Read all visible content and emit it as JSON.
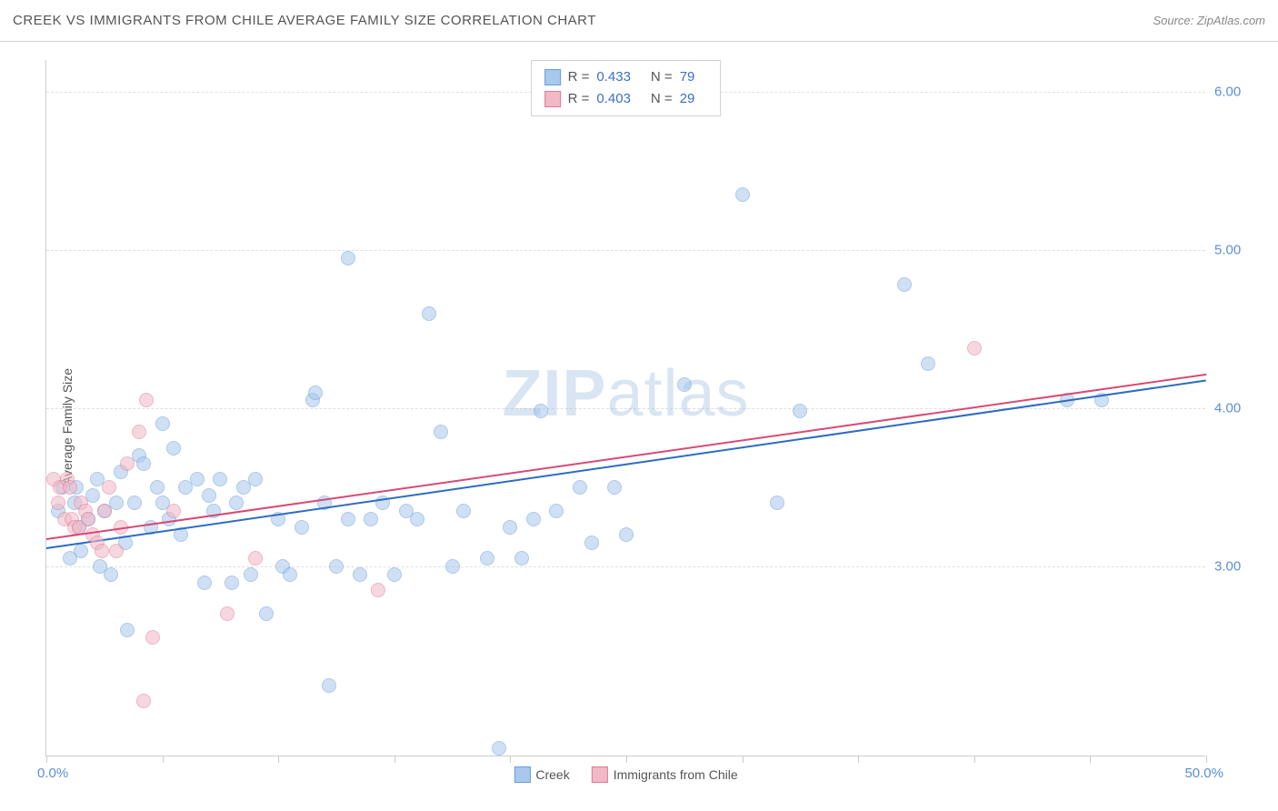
{
  "header": {
    "title": "CREEK VS IMMIGRANTS FROM CHILE AVERAGE FAMILY SIZE CORRELATION CHART",
    "source": "Source: ZipAtlas.com"
  },
  "watermark": {
    "zip": "ZIP",
    "atlas": "atlas"
  },
  "y_axis": {
    "label": "Average Family Size"
  },
  "chart": {
    "type": "scatter",
    "xlim": [
      0,
      50
    ],
    "ylim": [
      1.8,
      6.2
    ],
    "x_min_label": "0.0%",
    "x_max_label": "50.0%",
    "x_ticks": [
      0,
      5,
      10,
      15,
      20,
      25,
      30,
      35,
      40,
      45,
      50
    ],
    "y_ticks": [
      3.0,
      4.0,
      5.0,
      6.0
    ],
    "y_tick_labels": [
      "3.00",
      "4.00",
      "5.00",
      "6.00"
    ],
    "grid_color": "#e0e0e0",
    "axis_color": "#cccccc",
    "tick_label_color": "#5b8fd6",
    "background_color": "#ffffff",
    "point_radius": 8,
    "point_opacity": 0.55,
    "series": [
      {
        "name": "Creek",
        "fill_color": "#a8c8ec",
        "stroke_color": "#6a9ddb",
        "line_color": "#2d6cc0",
        "R": "0.433",
        "N": "79",
        "trend": {
          "x1": 0,
          "y1": 3.12,
          "x2": 50,
          "y2": 4.18
        },
        "points": [
          {
            "x": 0.5,
            "y": 3.35
          },
          {
            "x": 0.7,
            "y": 3.5
          },
          {
            "x": 1.0,
            "y": 3.05
          },
          {
            "x": 1.2,
            "y": 3.4
          },
          {
            "x": 1.3,
            "y": 3.5
          },
          {
            "x": 1.4,
            "y": 3.25
          },
          {
            "x": 1.5,
            "y": 3.1
          },
          {
            "x": 1.8,
            "y": 3.3
          },
          {
            "x": 2.0,
            "y": 3.45
          },
          {
            "x": 2.2,
            "y": 3.55
          },
          {
            "x": 2.3,
            "y": 3.0
          },
          {
            "x": 2.5,
            "y": 3.35
          },
          {
            "x": 2.8,
            "y": 2.95
          },
          {
            "x": 3.0,
            "y": 3.4
          },
          {
            "x": 3.2,
            "y": 3.6
          },
          {
            "x": 3.4,
            "y": 3.15
          },
          {
            "x": 3.5,
            "y": 2.6
          },
          {
            "x": 3.8,
            "y": 3.4
          },
          {
            "x": 4.0,
            "y": 3.7
          },
          {
            "x": 4.2,
            "y": 3.65
          },
          {
            "x": 4.5,
            "y": 3.25
          },
          {
            "x": 4.8,
            "y": 3.5
          },
          {
            "x": 5.0,
            "y": 3.4
          },
          {
            "x": 5.3,
            "y": 3.3
          },
          {
            "x": 5.5,
            "y": 3.75
          },
          {
            "x": 5.8,
            "y": 3.2
          },
          {
            "x": 6.0,
            "y": 3.5
          },
          {
            "x": 6.5,
            "y": 3.55
          },
          {
            "x": 6.8,
            "y": 2.9
          },
          {
            "x": 7.0,
            "y": 3.45
          },
          {
            "x": 7.2,
            "y": 3.35
          },
          {
            "x": 7.5,
            "y": 3.55
          },
          {
            "x": 8.0,
            "y": 2.9
          },
          {
            "x": 8.2,
            "y": 3.4
          },
          {
            "x": 8.5,
            "y": 3.5
          },
          {
            "x": 8.8,
            "y": 2.95
          },
          {
            "x": 9.0,
            "y": 3.55
          },
          {
            "x": 9.5,
            "y": 2.7
          },
          {
            "x": 10.0,
            "y": 3.3
          },
          {
            "x": 10.2,
            "y": 3.0
          },
          {
            "x": 10.5,
            "y": 2.95
          },
          {
            "x": 11.0,
            "y": 3.25
          },
          {
            "x": 11.5,
            "y": 4.05
          },
          {
            "x": 11.6,
            "y": 4.1
          },
          {
            "x": 12.0,
            "y": 3.4
          },
          {
            "x": 12.2,
            "y": 2.25
          },
          {
            "x": 12.5,
            "y": 3.0
          },
          {
            "x": 13.0,
            "y": 3.3
          },
          {
            "x": 13.0,
            "y": 4.95
          },
          {
            "x": 13.5,
            "y": 2.95
          },
          {
            "x": 14.0,
            "y": 3.3
          },
          {
            "x": 14.5,
            "y": 3.4
          },
          {
            "x": 15.0,
            "y": 2.95
          },
          {
            "x": 15.5,
            "y": 3.35
          },
          {
            "x": 16.5,
            "y": 4.6
          },
          {
            "x": 16.0,
            "y": 3.3
          },
          {
            "x": 17.0,
            "y": 3.85
          },
          {
            "x": 17.5,
            "y": 3.0
          },
          {
            "x": 18.0,
            "y": 3.35
          },
          {
            "x": 19.0,
            "y": 3.05
          },
          {
            "x": 19.5,
            "y": 1.85
          },
          {
            "x": 20.0,
            "y": 3.25
          },
          {
            "x": 20.5,
            "y": 3.05
          },
          {
            "x": 21.0,
            "y": 3.3
          },
          {
            "x": 21.3,
            "y": 3.98
          },
          {
            "x": 22.0,
            "y": 3.35
          },
          {
            "x": 23.0,
            "y": 3.5
          },
          {
            "x": 23.5,
            "y": 3.15
          },
          {
            "x": 24.5,
            "y": 3.5
          },
          {
            "x": 25.0,
            "y": 3.2
          },
          {
            "x": 27.5,
            "y": 4.15
          },
          {
            "x": 30.0,
            "y": 5.35
          },
          {
            "x": 31.5,
            "y": 3.4
          },
          {
            "x": 32.5,
            "y": 3.98
          },
          {
            "x": 37.0,
            "y": 4.78
          },
          {
            "x": 38.0,
            "y": 4.28
          },
          {
            "x": 44.0,
            "y": 4.05
          },
          {
            "x": 45.5,
            "y": 4.05
          },
          {
            "x": 5.0,
            "y": 3.9
          }
        ]
      },
      {
        "name": "Immigrants from Chile",
        "fill_color": "#f2b8c6",
        "stroke_color": "#e07a96",
        "line_color": "#d74a73",
        "R": "0.403",
        "N": "29",
        "trend": {
          "x1": 0,
          "y1": 3.18,
          "x2": 50,
          "y2": 4.22
        },
        "points": [
          {
            "x": 0.3,
            "y": 3.55
          },
          {
            "x": 0.5,
            "y": 3.4
          },
          {
            "x": 0.6,
            "y": 3.5
          },
          {
            "x": 0.8,
            "y": 3.3
          },
          {
            "x": 0.9,
            "y": 3.55
          },
          {
            "x": 1.0,
            "y": 3.5
          },
          {
            "x": 1.1,
            "y": 3.3
          },
          {
            "x": 1.2,
            "y": 3.25
          },
          {
            "x": 1.4,
            "y": 3.25
          },
          {
            "x": 1.5,
            "y": 3.4
          },
          {
            "x": 1.7,
            "y": 3.35
          },
          {
            "x": 1.8,
            "y": 3.3
          },
          {
            "x": 2.0,
            "y": 3.2
          },
          {
            "x": 2.2,
            "y": 3.15
          },
          {
            "x": 2.4,
            "y": 3.1
          },
          {
            "x": 2.5,
            "y": 3.35
          },
          {
            "x": 2.7,
            "y": 3.5
          },
          {
            "x": 3.0,
            "y": 3.1
          },
          {
            "x": 3.2,
            "y": 3.25
          },
          {
            "x": 3.5,
            "y": 3.65
          },
          {
            "x": 4.0,
            "y": 3.85
          },
          {
            "x": 4.2,
            "y": 2.15
          },
          {
            "x": 4.3,
            "y": 4.05
          },
          {
            "x": 4.6,
            "y": 2.55
          },
          {
            "x": 5.5,
            "y": 3.35
          },
          {
            "x": 7.8,
            "y": 2.7
          },
          {
            "x": 9.0,
            "y": 3.05
          },
          {
            "x": 14.3,
            "y": 2.85
          },
          {
            "x": 40.0,
            "y": 4.38
          }
        ]
      }
    ]
  },
  "legend_top": {
    "r_label": "R =",
    "n_label": "N ="
  },
  "legend_bottom": {
    "items": [
      {
        "label": "Creek",
        "fill": "#a8c8ec",
        "stroke": "#6a9ddb"
      },
      {
        "label": "Immigrants from Chile",
        "fill": "#f2b8c6",
        "stroke": "#e07a96"
      }
    ]
  }
}
